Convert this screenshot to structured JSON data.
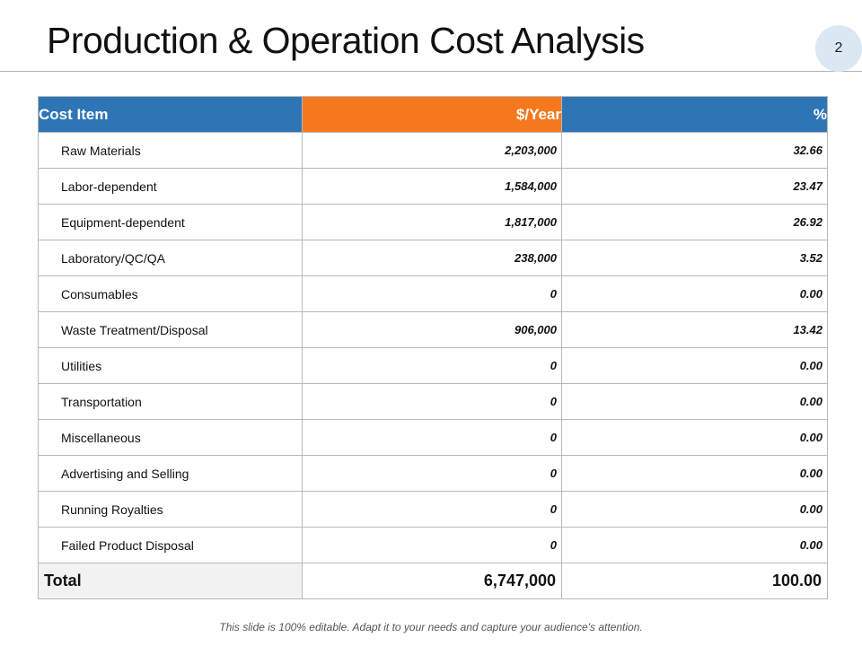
{
  "slide": {
    "title": "Production & Operation Cost Analysis",
    "page_number": "2",
    "footer": "This slide is 100% editable. Adapt it to your needs and capture your audience's attention."
  },
  "table": {
    "headers": {
      "item": "Cost Item",
      "year": "$/Year",
      "pct": "%"
    },
    "rows": [
      {
        "item": "Raw Materials",
        "year": "2,203,000",
        "pct": "32.66"
      },
      {
        "item": "Labor-dependent",
        "year": "1,584,000",
        "pct": "23.47"
      },
      {
        "item": "Equipment-dependent",
        "year": "1,817,000",
        "pct": "26.92"
      },
      {
        "item": "Laboratory/QC/QA",
        "year": "238,000",
        "pct": "3.52"
      },
      {
        "item": "Consumables",
        "year": "0",
        "pct": "0.00"
      },
      {
        "item": "Waste Treatment/Disposal",
        "year": "906,000",
        "pct": "13.42"
      },
      {
        "item": "Utilities",
        "year": "0",
        "pct": "0.00"
      },
      {
        "item": "Transportation",
        "year": "0",
        "pct": "0.00"
      },
      {
        "item": "Miscellaneous",
        "year": "0",
        "pct": "0.00"
      },
      {
        "item": "Advertising and Selling",
        "year": "0",
        "pct": "0.00"
      },
      {
        "item": "Running Royalties",
        "year": "0",
        "pct": "0.00"
      },
      {
        "item": "Failed Product Disposal",
        "year": "0",
        "pct": "0.00"
      }
    ],
    "total": {
      "label": "Total",
      "year": "6,747,000",
      "pct": "100.00"
    }
  },
  "colors": {
    "header_blue": "#2e75b6",
    "header_orange": "#f5781e",
    "badge": "#dbe8f3"
  }
}
